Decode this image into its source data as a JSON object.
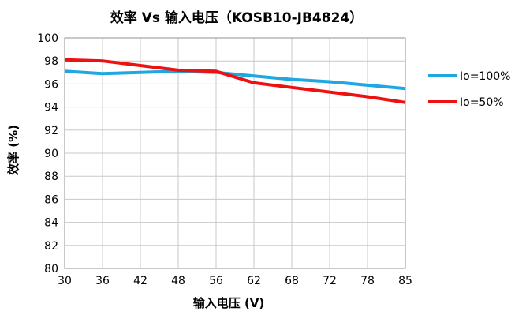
{
  "chart_data": {
    "type": "line",
    "title": "效率 Vs 输入电压（KOSB10-JB4824）",
    "xlabel": "输入电压 (V)",
    "ylabel": "效率 (%)",
    "x": [
      30,
      36,
      42,
      48,
      56,
      62,
      68,
      72,
      78,
      85
    ],
    "x_ticks": [
      "30",
      "36",
      "42",
      "48",
      "56",
      "62",
      "68",
      "72",
      "78",
      "85"
    ],
    "y_ticks": [
      "80",
      "82",
      "84",
      "86",
      "88",
      "90",
      "92",
      "94",
      "96",
      "98",
      "100"
    ],
    "ylim": [
      80,
      100
    ],
    "grid": true,
    "legend_position": "right",
    "series": [
      {
        "name": "Io=100%",
        "color": "#1ea7e1",
        "values": [
          97.1,
          96.9,
          97.0,
          97.1,
          97.0,
          96.7,
          96.4,
          96.2,
          95.9,
          95.6
        ]
      },
      {
        "name": "Io=50%",
        "color": "#ee1111",
        "values": [
          98.1,
          98.0,
          97.6,
          97.2,
          97.1,
          96.1,
          95.7,
          95.3,
          94.9,
          94.4
        ]
      }
    ]
  }
}
